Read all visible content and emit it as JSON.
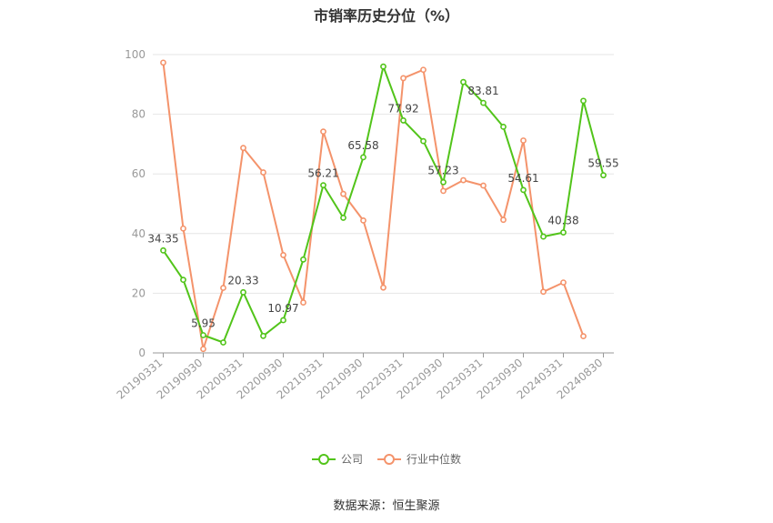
{
  "chart_data": {
    "type": "line",
    "title": "市销率历史分位（%）",
    "source": "数据来源：恒生聚源",
    "ylim": [
      0,
      100
    ],
    "yticks": [
      0,
      20,
      40,
      60,
      80,
      100
    ],
    "x": [
      "20190331",
      "20190630",
      "20190930",
      "20191231",
      "20200331",
      "20200630",
      "20200930",
      "20201231",
      "20210331",
      "20210630",
      "20210930",
      "20211231",
      "20220331",
      "20220630",
      "20220930",
      "20221231",
      "20230331",
      "20230630",
      "20230930",
      "20231231",
      "20240331",
      "20240630",
      "20240830"
    ],
    "xtick_labels": [
      "20190331",
      "20190930",
      "20200331",
      "20200930",
      "20210331",
      "20210930",
      "20220331",
      "20220930",
      "20230331",
      "20230930",
      "20240331",
      "20240830"
    ],
    "grid": true,
    "legend_position": "bottom",
    "series": [
      {
        "name": "公司",
        "color": "#52c41a",
        "values": [
          34.35,
          24.5,
          5.95,
          3.5,
          20.33,
          5.7,
          10.97,
          31.3,
          56.21,
          45.3,
          65.58,
          96.0,
          77.92,
          71.0,
          57.23,
          90.8,
          83.81,
          75.8,
          54.61,
          39.0,
          40.38,
          84.5,
          59.55
        ],
        "labels": [
          "34.35",
          "",
          "5.95",
          "",
          "20.33",
          "",
          "10.97",
          "",
          "56.21",
          "",
          "65.58",
          "",
          "77.92",
          "",
          "57.23",
          "",
          "83.81",
          "",
          "54.61",
          "",
          "40.38",
          "",
          "59.55"
        ]
      },
      {
        "name": "行业中位数",
        "color": "#f4936b",
        "values": [
          97.3,
          41.7,
          1.3,
          21.8,
          68.7,
          60.5,
          32.8,
          16.9,
          74.2,
          53.3,
          44.4,
          21.9,
          92.1,
          94.9,
          54.3,
          57.9,
          56.1,
          44.6,
          71.2,
          20.5,
          23.6,
          5.6,
          null
        ]
      }
    ]
  }
}
